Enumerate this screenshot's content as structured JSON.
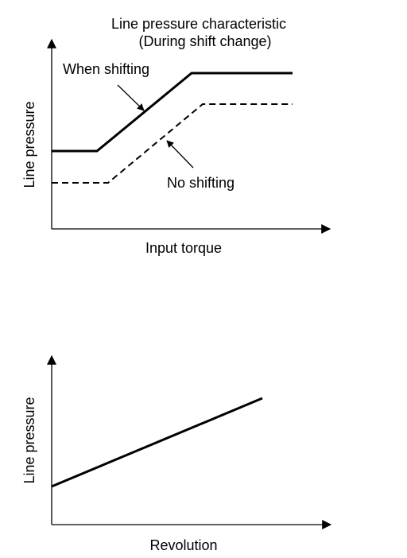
{
  "top_diagram": {
    "title_line1": "Line pressure characteristic",
    "title_line2": "(During shift change)",
    "y_axis_label": "Line pressure",
    "x_axis_label": "Input torque",
    "label_when_shifting": "When shifting",
    "label_no_shifting": "No shifting"
  },
  "bottom_diagram": {
    "y_axis_label": "Line pressure",
    "x_axis_label": "Revolution"
  },
  "colors": {
    "ink": "#000000",
    "background": "#ffffff"
  }
}
